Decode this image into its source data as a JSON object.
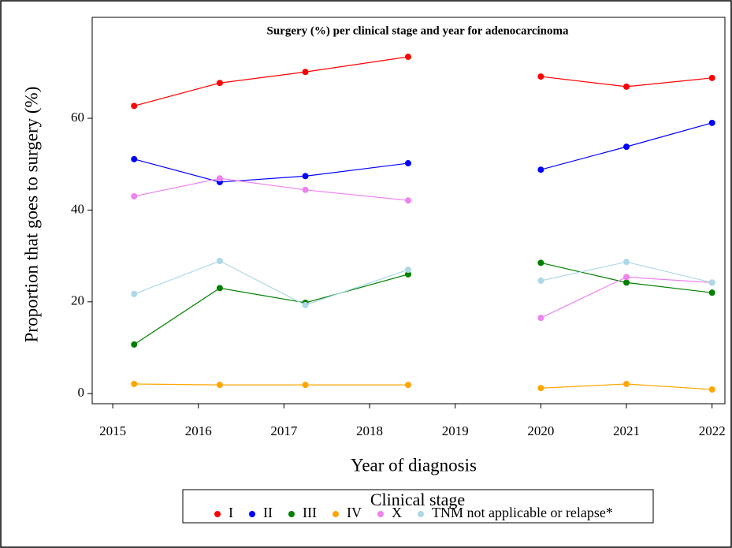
{
  "chart_data": {
    "type": "line",
    "title": "Surgery (%) per clinical stage and year for adenocarcinoma",
    "x_label": "Year of diagnosis",
    "y_label": "Proportion that goes to surgery (%)",
    "x": [
      2015.25,
      2016.25,
      2017.25,
      2018.45,
      2019,
      2020,
      2021,
      2022
    ],
    "series": [
      {
        "name": "I",
        "color": "#ff0000",
        "values": [
          62.7,
          67.7,
          70.1,
          73.4,
          null,
          69.1,
          66.9,
          68.8
        ]
      },
      {
        "name": "II",
        "color": "#0000ff",
        "values": [
          51.1,
          46.1,
          47.4,
          50.2,
          null,
          48.8,
          53.8,
          59.0
        ]
      },
      {
        "name": "III",
        "color": "#008000",
        "values": [
          10.7,
          23.0,
          19.8,
          26.0,
          null,
          28.5,
          24.2,
          22.0
        ]
      },
      {
        "name": "IV",
        "color": "#ffa500",
        "values": [
          2.1,
          1.9,
          1.9,
          1.9,
          null,
          1.2,
          2.1,
          0.9
        ]
      },
      {
        "name": "X",
        "color": "#ee82ee",
        "values": [
          43.0,
          46.9,
          44.4,
          42.1,
          null,
          16.5,
          25.4,
          24.2
        ]
      },
      {
        "name": "TNM not applicable or relapse*",
        "color": "#add8e6",
        "values": [
          21.7,
          28.9,
          19.3,
          27.0,
          null,
          24.6,
          28.7,
          24.2
        ]
      }
    ],
    "legend_title": "Clinical stage",
    "xlim": [
      2014.76,
      2022.15
    ],
    "xticks": [
      2015,
      2016,
      2017,
      2018,
      2019,
      2020,
      2021,
      2022
    ],
    "ylim": [
      -2.2,
      82
    ],
    "yticks": [
      0,
      20,
      40,
      60
    ]
  }
}
